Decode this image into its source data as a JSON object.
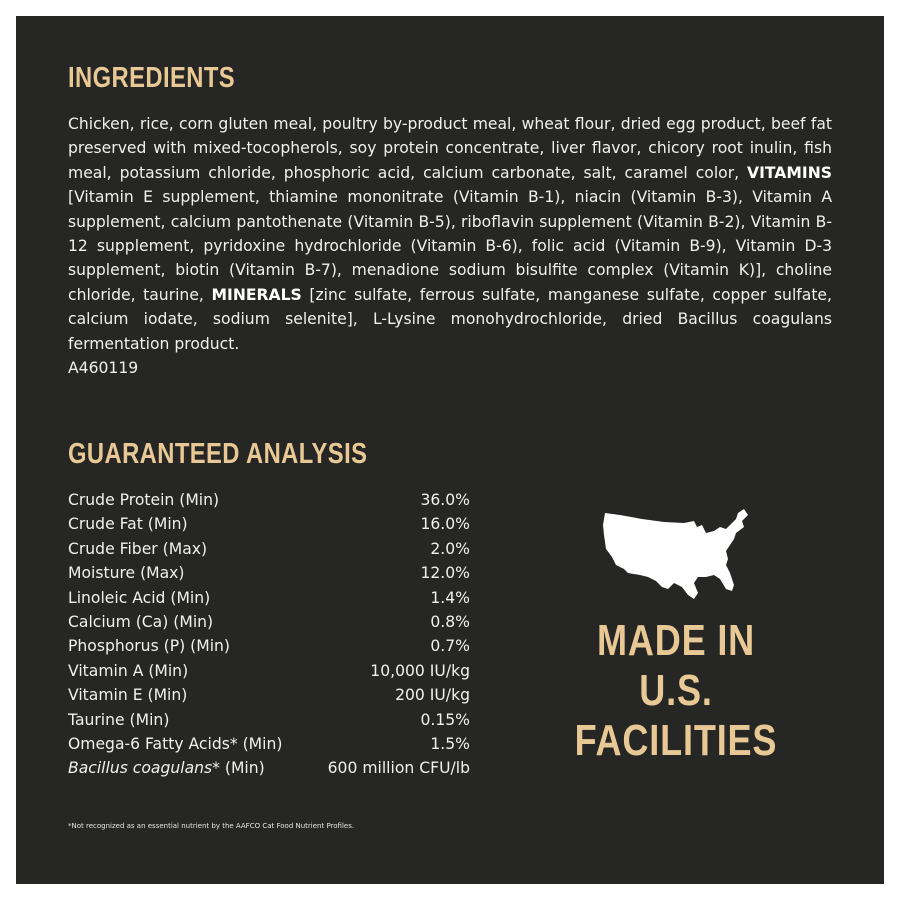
{
  "ingredients": {
    "heading": "INGREDIENTS",
    "part1": "Chicken, rice, corn gluten meal, poultry by-product meal, wheat flour, dried egg product, beef fat preserved with mixed-tocopherols, soy protein concentrate, liver flavor, chicory root inulin, fish meal, potassium chloride, phosphoric acid, calcium carbonate, salt, caramel color,",
    "vitamins_label": "VITAMINS",
    "part2": "[Vitamin E supplement, thiamine mononitrate (Vitamin B-1), niacin (Vitamin B-3), Vitamin A supplement, calcium pantothenate (Vitamin B-5), riboflavin supplement (Vitamin B-2), Vitamin B-12 supplement, pyridoxine hydrochloride (Vitamin B-6), folic acid (Vitamin B-9), Vitamin D-3 supplement, biotin (Vitamin B-7), menadione sodium bisulfite complex (Vitamin K)], choline chloride, taurine,",
    "minerals_label": "MINERALS",
    "part3": "[zinc sulfate, ferrous sulfate, manganese sulfate, copper sulfate, calcium iodate, sodium selenite], L-Lysine monohydrochloride, dried Bacillus coagulans fermentation product.",
    "code": "A460119"
  },
  "analysis": {
    "heading": "GUARANTEED ANALYSIS",
    "rows": [
      {
        "name": "Crude Protein (Min)",
        "value": "36.0%"
      },
      {
        "name": "Crude Fat (Min)",
        "value": "16.0%"
      },
      {
        "name": "Crude Fiber (Max)",
        "value": "2.0%"
      },
      {
        "name": "Moisture (Max)",
        "value": "12.0%"
      },
      {
        "name": "Linoleic Acid (Min)",
        "value": "1.4%"
      },
      {
        "name": "Calcium (Ca) (Min)",
        "value": "0.8%"
      },
      {
        "name": "Phosphorus (P) (Min)",
        "value": "0.7%"
      },
      {
        "name": "Vitamin A (Min)",
        "value": "10,000 IU/kg"
      },
      {
        "name": "Vitamin E (Min)",
        "value": "200 IU/kg"
      },
      {
        "name": "Taurine (Min)",
        "value": "0.15%"
      },
      {
        "name": "Omega-6 Fatty Acids* (Min)",
        "value": "1.5%"
      },
      {
        "name_italic": "Bacillus coagulans",
        "name_suffix": "* (Min)",
        "value": "600 million CFU/lb"
      }
    ],
    "footnote": "*Not recognized as an essential nutrient by the AAFCO Cat Food Nutrient Profiles."
  },
  "badge": {
    "line1": "MADE IN",
    "line2": "U.S.",
    "line3": "FACILITIES",
    "icon": "usa-map-icon"
  },
  "colors": {
    "background": "#262624",
    "heading_gold": "#e8c995",
    "text": "#f0f0ec"
  }
}
